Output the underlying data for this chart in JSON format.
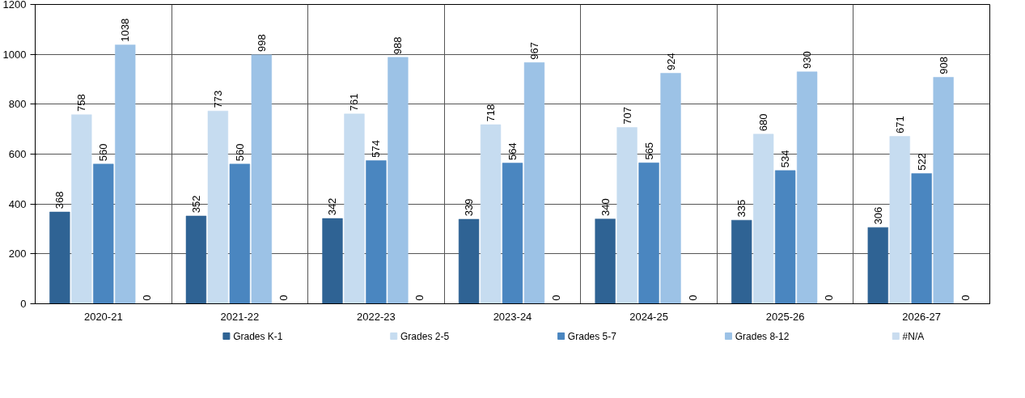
{
  "chart_data": {
    "type": "bar",
    "categories": [
      "2020-21",
      "2021-22",
      "2022-23",
      "2023-24",
      "2024-25",
      "2025-26",
      "2026-27"
    ],
    "series": [
      {
        "name": "Grades K-1",
        "color": "#2f6394",
        "values": [
          368,
          352,
          342,
          339,
          340,
          335,
          306
        ]
      },
      {
        "name": "Grades 2-5",
        "color": "#c6dcf0",
        "values": [
          758,
          773,
          761,
          718,
          707,
          680,
          671
        ]
      },
      {
        "name": "Grades 5-7",
        "color": "#4a86c0",
        "values": [
          560,
          560,
          574,
          564,
          565,
          534,
          522
        ]
      },
      {
        "name": "Grades 8-12",
        "color": "#9cc2e6",
        "values": [
          1038,
          998,
          988,
          967,
          924,
          930,
          908
        ]
      },
      {
        "name": "#N/A",
        "color": "#c9dcef",
        "values": [
          0,
          0,
          0,
          0,
          0,
          0,
          0
        ]
      }
    ],
    "ylim": [
      0,
      1200
    ],
    "yticks": [
      0,
      200,
      400,
      600,
      800,
      1000,
      1200
    ],
    "grid": true,
    "legend": "bottom",
    "data_labels": true
  }
}
